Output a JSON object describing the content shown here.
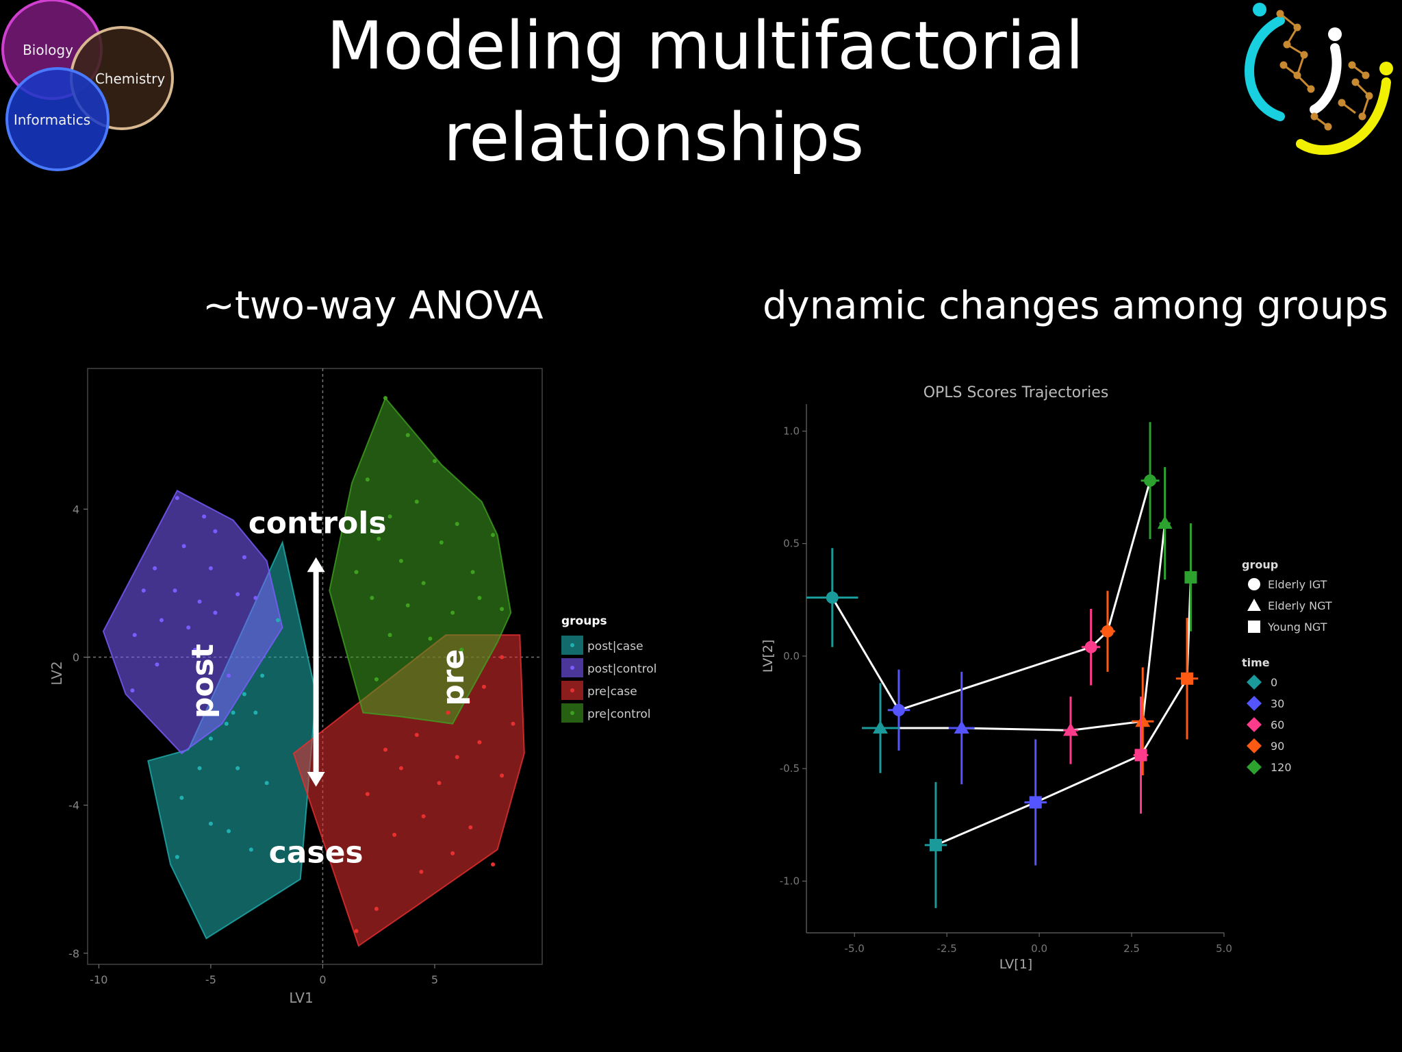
{
  "slide": {
    "title_line1": "Modeling multifactorial",
    "title_line2": "relationships",
    "left_subtitle": "~two-way ANOVA",
    "right_subtitle": "dynamic changes among groups"
  },
  "venn_logo": {
    "labels": [
      "Biology",
      "Chemistry",
      "Informatics"
    ],
    "colors": [
      "#c030c0",
      "#d8b890",
      "#2050ff"
    ]
  },
  "chart_data": [
    {
      "type": "scatter",
      "title": "",
      "xlabel": "LV1",
      "ylabel": "LV2",
      "xlim": [
        -10.5,
        9.8
      ],
      "ylim": [
        -8.3,
        7.8
      ],
      "x_ticks": [
        -10,
        -5,
        0,
        5
      ],
      "y_ticks": [
        -8,
        -4,
        0,
        4
      ],
      "grid": false,
      "legend": {
        "title": "groups",
        "placement": "right"
      },
      "annotations": [
        "controls",
        "cases",
        "post",
        "pre"
      ],
      "series": [
        {
          "name": "post|case",
          "color": "#20b0b0",
          "hull": [
            [
              -1.8,
              3.1
            ],
            [
              -0.3,
              -1
            ],
            [
              -1,
              -6
            ],
            [
              -5.2,
              -7.6
            ],
            [
              -6.8,
              -5.6
            ],
            [
              -7.8,
              -2.8
            ],
            [
              -6,
              -2.5
            ]
          ],
          "points": [
            [
              -2,
              1
            ],
            [
              -2.7,
              -0.5
            ],
            [
              -3.5,
              -1
            ],
            [
              -4.3,
              -1.8
            ],
            [
              -5,
              -2.2
            ],
            [
              -5.5,
              -3
            ],
            [
              -3.8,
              -3
            ],
            [
              -6.3,
              -3.8
            ],
            [
              -5,
              -4.5
            ],
            [
              -4.2,
              -4.7
            ],
            [
              -3.2,
              -5.2
            ],
            [
              -6.5,
              -5.4
            ],
            [
              -2.5,
              -3.4
            ],
            [
              -4,
              -1.5
            ],
            [
              -3,
              -1.5
            ]
          ]
        },
        {
          "name": "post|control",
          "color": "#7b5cff",
          "hull": [
            [
              -6.5,
              4.5
            ],
            [
              -4,
              3.7
            ],
            [
              -2.5,
              2.6
            ],
            [
              -1.8,
              0.8
            ],
            [
              -4.5,
              -1.8
            ],
            [
              -6.3,
              -2.6
            ],
            [
              -8.8,
              -1
            ],
            [
              -9.8,
              0.7
            ]
          ],
          "points": [
            [
              -6.5,
              4.3
            ],
            [
              -5.3,
              3.8
            ],
            [
              -4.8,
              3.4
            ],
            [
              -6.2,
              3
            ],
            [
              -7.5,
              2.4
            ],
            [
              -5,
              2.4
            ],
            [
              -3.5,
              2.7
            ],
            [
              -8,
              1.8
            ],
            [
              -6.6,
              1.8
            ],
            [
              -5.5,
              1.5
            ],
            [
              -3.8,
              1.7
            ],
            [
              -7.2,
              1
            ],
            [
              -6,
              0.8
            ],
            [
              -8.4,
              0.6
            ],
            [
              -4.8,
              1.2
            ],
            [
              -3,
              1.6
            ],
            [
              -5.7,
              0.2
            ],
            [
              -7.4,
              -0.2
            ],
            [
              -8.5,
              -0.9
            ],
            [
              -4.2,
              -0.5
            ]
          ]
        },
        {
          "name": "pre|case",
          "color": "#e83030",
          "hull": [
            [
              5.5,
              0.6
            ],
            [
              8.8,
              0.6
            ],
            [
              9,
              -2.6
            ],
            [
              7.8,
              -5.2
            ],
            [
              4,
              -6.8
            ],
            [
              1.6,
              -7.8
            ],
            [
              -1.3,
              -2.6
            ]
          ],
          "points": [
            [
              8,
              0
            ],
            [
              7.2,
              -0.8
            ],
            [
              6.5,
              -1.2
            ],
            [
              5.6,
              -1.5
            ],
            [
              8.5,
              -1.8
            ],
            [
              7,
              -2.3
            ],
            [
              4.2,
              -2.1
            ],
            [
              2.8,
              -2.5
            ],
            [
              6,
              -2.7
            ],
            [
              3.5,
              -3
            ],
            [
              5.2,
              -3.4
            ],
            [
              8,
              -3.2
            ],
            [
              2,
              -3.7
            ],
            [
              4.5,
              -4.3
            ],
            [
              6.6,
              -4.6
            ],
            [
              3.2,
              -4.8
            ],
            [
              5.8,
              -5.3
            ],
            [
              7.6,
              -5.6
            ],
            [
              2.4,
              -6.8
            ],
            [
              1.5,
              -7.4
            ],
            [
              4.4,
              -5.8
            ]
          ]
        },
        {
          "name": "pre|control",
          "color": "#3fa020",
          "hull": [
            [
              2.8,
              7
            ],
            [
              5.3,
              5.2
            ],
            [
              7.1,
              4.2
            ],
            [
              7.8,
              3.3
            ],
            [
              8.4,
              1.2
            ],
            [
              7.8,
              0.4
            ],
            [
              5.8,
              -1.8
            ],
            [
              3.4,
              -1.6
            ],
            [
              1.8,
              -1.5
            ],
            [
              0.3,
              1.8
            ],
            [
              1.3,
              4.7
            ]
          ],
          "points": [
            [
              2.8,
              7
            ],
            [
              3.8,
              6
            ],
            [
              5,
              5.3
            ],
            [
              2,
              4.8
            ],
            [
              4.2,
              4.2
            ],
            [
              3,
              3.8
            ],
            [
              6,
              3.6
            ],
            [
              2.5,
              3.2
            ],
            [
              5.3,
              3.1
            ],
            [
              7.6,
              3.3
            ],
            [
              3.5,
              2.6
            ],
            [
              1.5,
              2.3
            ],
            [
              4.5,
              2
            ],
            [
              6.7,
              2.3
            ],
            [
              2.2,
              1.6
            ],
            [
              3.8,
              1.4
            ],
            [
              5.8,
              1.2
            ],
            [
              7,
              1.6
            ],
            [
              8,
              1.3
            ],
            [
              3,
              0.6
            ],
            [
              4.8,
              0.5
            ],
            [
              6.2,
              0.2
            ],
            [
              2.4,
              -0.6
            ]
          ]
        }
      ]
    },
    {
      "type": "line",
      "title": "OPLS Scores Trajectories",
      "xlabel": "LV[1]",
      "ylabel": "LV[2]",
      "xlim": [
        -6.3,
        5.0
      ],
      "ylim": [
        -1.23,
        1.12
      ],
      "x_ticks": [
        "-5.0",
        "-2.5",
        "0.0",
        "2.5",
        "5.0"
      ],
      "y_ticks": [
        "-1.0",
        "-0.5",
        "0.0",
        "0.5",
        "1.0"
      ],
      "grid": false,
      "legend_group": {
        "title": "group",
        "items": [
          "Elderly IGT",
          "Elderly NGT",
          "Young NGT"
        ]
      },
      "legend_time": {
        "title": "time",
        "items": [
          "0",
          "30",
          "60",
          "90",
          "120"
        ],
        "colors": [
          "#1a9a9a",
          "#5555ff",
          "#ff3c8c",
          "#ff5a14",
          "#2ea22e"
        ]
      },
      "series": [
        {
          "name": "Elderly IGT",
          "marker": "circle",
          "points": [
            {
              "time": "0",
              "x": -5.6,
              "y": 0.26,
              "xerr": 0.7,
              "yerr": 0.22
            },
            {
              "time": "30",
              "x": -3.8,
              "y": -0.24,
              "xerr": 0.3,
              "yerr": 0.18
            },
            {
              "time": "60",
              "x": 1.4,
              "y": 0.04,
              "xerr": 0.25,
              "yerr": 0.17
            },
            {
              "time": "90",
              "x": 1.85,
              "y": 0.11,
              "xerr": 0.2,
              "yerr": 0.18
            },
            {
              "time": "120",
              "x": 3.0,
              "y": 0.78,
              "xerr": 0.25,
              "yerr": 0.26
            }
          ]
        },
        {
          "name": "Elderly NGT",
          "marker": "triangle",
          "points": [
            {
              "time": "0",
              "x": -4.3,
              "y": -0.32,
              "xerr": 0.5,
              "yerr": 0.2
            },
            {
              "time": "30",
              "x": -2.1,
              "y": -0.32,
              "xerr": 0.35,
              "yerr": 0.25
            },
            {
              "time": "60",
              "x": 0.85,
              "y": -0.33,
              "xerr": 0.2,
              "yerr": 0.15
            },
            {
              "time": "90",
              "x": 2.8,
              "y": -0.29,
              "xerr": 0.3,
              "yerr": 0.24
            },
            {
              "time": "120",
              "x": 3.4,
              "y": 0.59,
              "xerr": 0.15,
              "yerr": 0.25
            }
          ]
        },
        {
          "name": "Young NGT",
          "marker": "square",
          "points": [
            {
              "time": "0",
              "x": -2.8,
              "y": -0.84,
              "xerr": 0.3,
              "yerr": 0.28
            },
            {
              "time": "30",
              "x": -0.1,
              "y": -0.65,
              "xerr": 0.3,
              "yerr": 0.28
            },
            {
              "time": "60",
              "x": 2.75,
              "y": -0.44,
              "xerr": 0.2,
              "yerr": 0.26
            },
            {
              "time": "90",
              "x": 4.0,
              "y": -0.1,
              "xerr": 0.3,
              "yerr": 0.27
            },
            {
              "time": "120",
              "x": 4.1,
              "y": 0.35,
              "xerr": 0.15,
              "yerr": 0.24
            }
          ]
        }
      ]
    }
  ]
}
